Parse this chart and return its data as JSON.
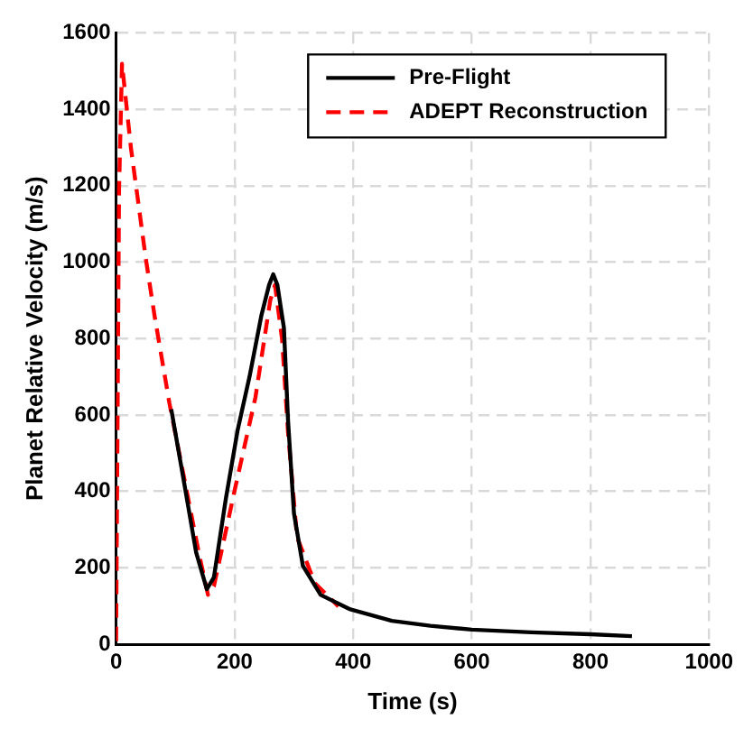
{
  "chart_data": {
    "type": "line",
    "xlabel": "Time (s)",
    "ylabel": "Planet Relative Velocity (m/s)",
    "xlim": [
      0,
      1000
    ],
    "xticks": [
      0,
      200,
      400,
      600,
      800,
      1000
    ],
    "ylim": [
      0,
      1600
    ],
    "yticks": [
      0,
      200,
      400,
      600,
      800,
      1000,
      1200,
      1400,
      1600
    ],
    "grid": true,
    "legend": "top right",
    "marker": "none",
    "series": [
      {
        "name": "Pre-Flight",
        "color": "#000000",
        "line_style": "solid",
        "x": [
          93,
          115,
          135,
          153,
          165,
          185,
          205,
          225,
          245,
          258,
          265,
          272,
          283,
          290,
          300,
          315,
          345,
          395,
          465,
          530,
          600,
          700,
          800,
          870
        ],
        "values": [
          615,
          420,
          240,
          144,
          175,
          380,
          560,
          700,
          860,
          940,
          968,
          940,
          828,
          585,
          342,
          205,
          129,
          91,
          61,
          48,
          38,
          31,
          26,
          21
        ]
      },
      {
        "name": "ADEPT Reconstruction",
        "color": "#ff0000",
        "line_style": "dashed",
        "x": [
          0,
          5,
          10,
          25,
          50,
          65,
          90,
          115,
          140,
          155,
          165,
          200,
          235,
          260,
          268,
          280,
          290,
          305,
          335,
          375
        ],
        "values": [
          8,
          1192,
          1519,
          1299,
          1010,
          858,
          630,
          433,
          235,
          129,
          152,
          403,
          646,
          900,
          940,
          797,
          554,
          281,
          160,
          99
        ]
      }
    ]
  }
}
